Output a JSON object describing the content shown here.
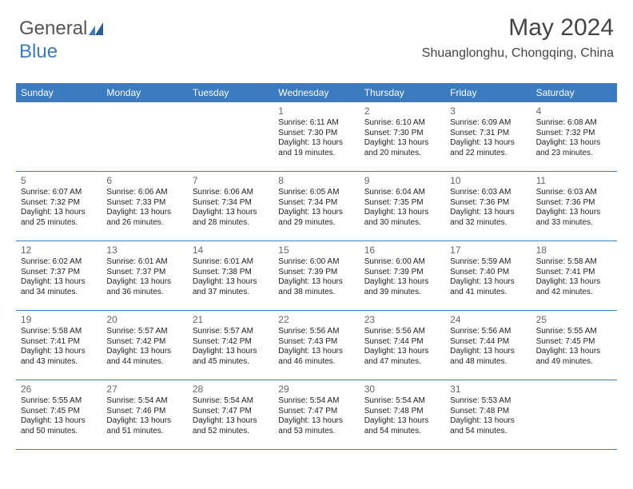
{
  "logo": {
    "text1": "General",
    "text2": "Blue"
  },
  "header": {
    "month": "May 2024",
    "location": "Shuanglonghu, Chongqing, China"
  },
  "colors": {
    "accent": "#3b7bbf",
    "text": "#222222",
    "muted": "#666666",
    "bg": "#ffffff"
  },
  "dayNames": [
    "Sunday",
    "Monday",
    "Tuesday",
    "Wednesday",
    "Thursday",
    "Friday",
    "Saturday"
  ],
  "weeks": [
    [
      null,
      null,
      null,
      {
        "n": "1",
        "sr": "6:11 AM",
        "ss": "7:30 PM",
        "dl": "13 hours and 19 minutes."
      },
      {
        "n": "2",
        "sr": "6:10 AM",
        "ss": "7:30 PM",
        "dl": "13 hours and 20 minutes."
      },
      {
        "n": "3",
        "sr": "6:09 AM",
        "ss": "7:31 PM",
        "dl": "13 hours and 22 minutes."
      },
      {
        "n": "4",
        "sr": "6:08 AM",
        "ss": "7:32 PM",
        "dl": "13 hours and 23 minutes."
      }
    ],
    [
      {
        "n": "5",
        "sr": "6:07 AM",
        "ss": "7:32 PM",
        "dl": "13 hours and 25 minutes."
      },
      {
        "n": "6",
        "sr": "6:06 AM",
        "ss": "7:33 PM",
        "dl": "13 hours and 26 minutes."
      },
      {
        "n": "7",
        "sr": "6:06 AM",
        "ss": "7:34 PM",
        "dl": "13 hours and 28 minutes."
      },
      {
        "n": "8",
        "sr": "6:05 AM",
        "ss": "7:34 PM",
        "dl": "13 hours and 29 minutes."
      },
      {
        "n": "9",
        "sr": "6:04 AM",
        "ss": "7:35 PM",
        "dl": "13 hours and 30 minutes."
      },
      {
        "n": "10",
        "sr": "6:03 AM",
        "ss": "7:36 PM",
        "dl": "13 hours and 32 minutes."
      },
      {
        "n": "11",
        "sr": "6:03 AM",
        "ss": "7:36 PM",
        "dl": "13 hours and 33 minutes."
      }
    ],
    [
      {
        "n": "12",
        "sr": "6:02 AM",
        "ss": "7:37 PM",
        "dl": "13 hours and 34 minutes."
      },
      {
        "n": "13",
        "sr": "6:01 AM",
        "ss": "7:37 PM",
        "dl": "13 hours and 36 minutes."
      },
      {
        "n": "14",
        "sr": "6:01 AM",
        "ss": "7:38 PM",
        "dl": "13 hours and 37 minutes."
      },
      {
        "n": "15",
        "sr": "6:00 AM",
        "ss": "7:39 PM",
        "dl": "13 hours and 38 minutes."
      },
      {
        "n": "16",
        "sr": "6:00 AM",
        "ss": "7:39 PM",
        "dl": "13 hours and 39 minutes."
      },
      {
        "n": "17",
        "sr": "5:59 AM",
        "ss": "7:40 PM",
        "dl": "13 hours and 41 minutes."
      },
      {
        "n": "18",
        "sr": "5:58 AM",
        "ss": "7:41 PM",
        "dl": "13 hours and 42 minutes."
      }
    ],
    [
      {
        "n": "19",
        "sr": "5:58 AM",
        "ss": "7:41 PM",
        "dl": "13 hours and 43 minutes."
      },
      {
        "n": "20",
        "sr": "5:57 AM",
        "ss": "7:42 PM",
        "dl": "13 hours and 44 minutes."
      },
      {
        "n": "21",
        "sr": "5:57 AM",
        "ss": "7:42 PM",
        "dl": "13 hours and 45 minutes."
      },
      {
        "n": "22",
        "sr": "5:56 AM",
        "ss": "7:43 PM",
        "dl": "13 hours and 46 minutes."
      },
      {
        "n": "23",
        "sr": "5:56 AM",
        "ss": "7:44 PM",
        "dl": "13 hours and 47 minutes."
      },
      {
        "n": "24",
        "sr": "5:56 AM",
        "ss": "7:44 PM",
        "dl": "13 hours and 48 minutes."
      },
      {
        "n": "25",
        "sr": "5:55 AM",
        "ss": "7:45 PM",
        "dl": "13 hours and 49 minutes."
      }
    ],
    [
      {
        "n": "26",
        "sr": "5:55 AM",
        "ss": "7:45 PM",
        "dl": "13 hours and 50 minutes."
      },
      {
        "n": "27",
        "sr": "5:54 AM",
        "ss": "7:46 PM",
        "dl": "13 hours and 51 minutes."
      },
      {
        "n": "28",
        "sr": "5:54 AM",
        "ss": "7:47 PM",
        "dl": "13 hours and 52 minutes."
      },
      {
        "n": "29",
        "sr": "5:54 AM",
        "ss": "7:47 PM",
        "dl": "13 hours and 53 minutes."
      },
      {
        "n": "30",
        "sr": "5:54 AM",
        "ss": "7:48 PM",
        "dl": "13 hours and 54 minutes."
      },
      {
        "n": "31",
        "sr": "5:53 AM",
        "ss": "7:48 PM",
        "dl": "13 hours and 54 minutes."
      },
      null
    ]
  ],
  "labels": {
    "sunrise": "Sunrise: ",
    "sunset": "Sunset: ",
    "daylight": "Daylight: "
  }
}
